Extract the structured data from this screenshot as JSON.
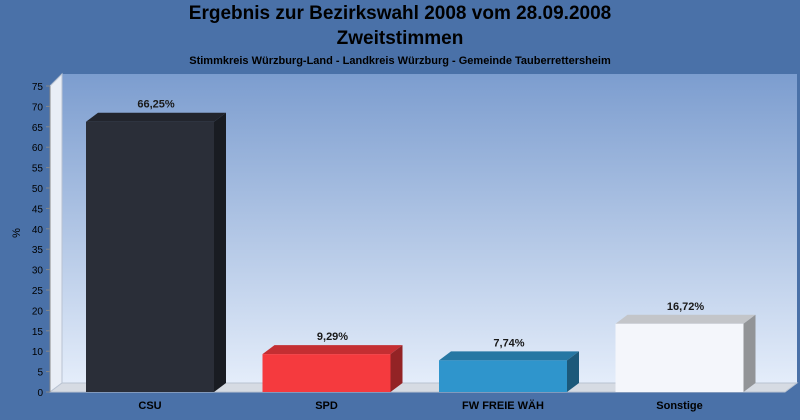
{
  "header": {
    "title": "Ergebnis zur Bezirkswahl 2008 vom 28.09.2008",
    "subtitle": "Zweitstimmen",
    "caption": "Stimmkreis Würzburg-Land - Landkreis Würzburg - Gemeinde Tauberrettersheim"
  },
  "chart_data": {
    "type": "bar",
    "title": "Ergebnis zur Bezirkswahl 2008 vom 28.09.2008",
    "subtitle": "Zweitstimmen",
    "xlabel": "",
    "ylabel": "%",
    "ylim": [
      0,
      75
    ],
    "yticks": [
      "0",
      "5",
      "10",
      "15",
      "20",
      "25",
      "30",
      "35",
      "40",
      "45",
      "50",
      "55",
      "60",
      "65",
      "70",
      "75"
    ],
    "categories": [
      "CSU",
      "SPD",
      "FW FREIE WÄH",
      "Sonstige"
    ],
    "values": [
      66.25,
      9.29,
      7.74,
      16.72
    ],
    "value_labels": [
      "66,25%",
      "9,29%",
      "7,74%",
      "16,72%"
    ],
    "colors": [
      "#2a2e38",
      "#f53a3e",
      "#2f95cc",
      "#f4f6fb"
    ],
    "grid": false,
    "legend": "none"
  }
}
